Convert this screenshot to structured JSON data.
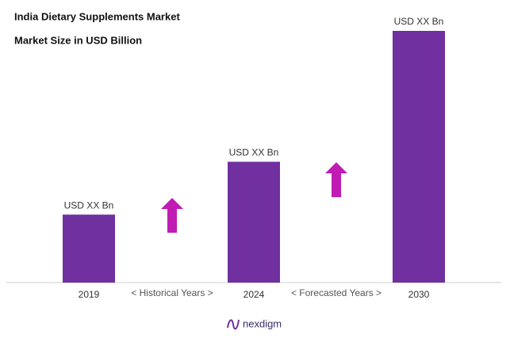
{
  "chart_data": {
    "type": "bar",
    "title": "India Dietary Supplements Market",
    "subtitle": "Market Size in USD Billion",
    "categories": [
      "2019",
      "2024",
      "2030"
    ],
    "values": [
      27,
      48,
      100
    ],
    "value_labels": [
      "USD XX Bn",
      "USD XX Bn",
      "USD XX Bn"
    ],
    "color": "#7030a0",
    "ylim": [
      0,
      100
    ],
    "annotations": [
      "< Historical Years >",
      "< Forecasted Years >"
    ],
    "brand": "nexdigm"
  }
}
